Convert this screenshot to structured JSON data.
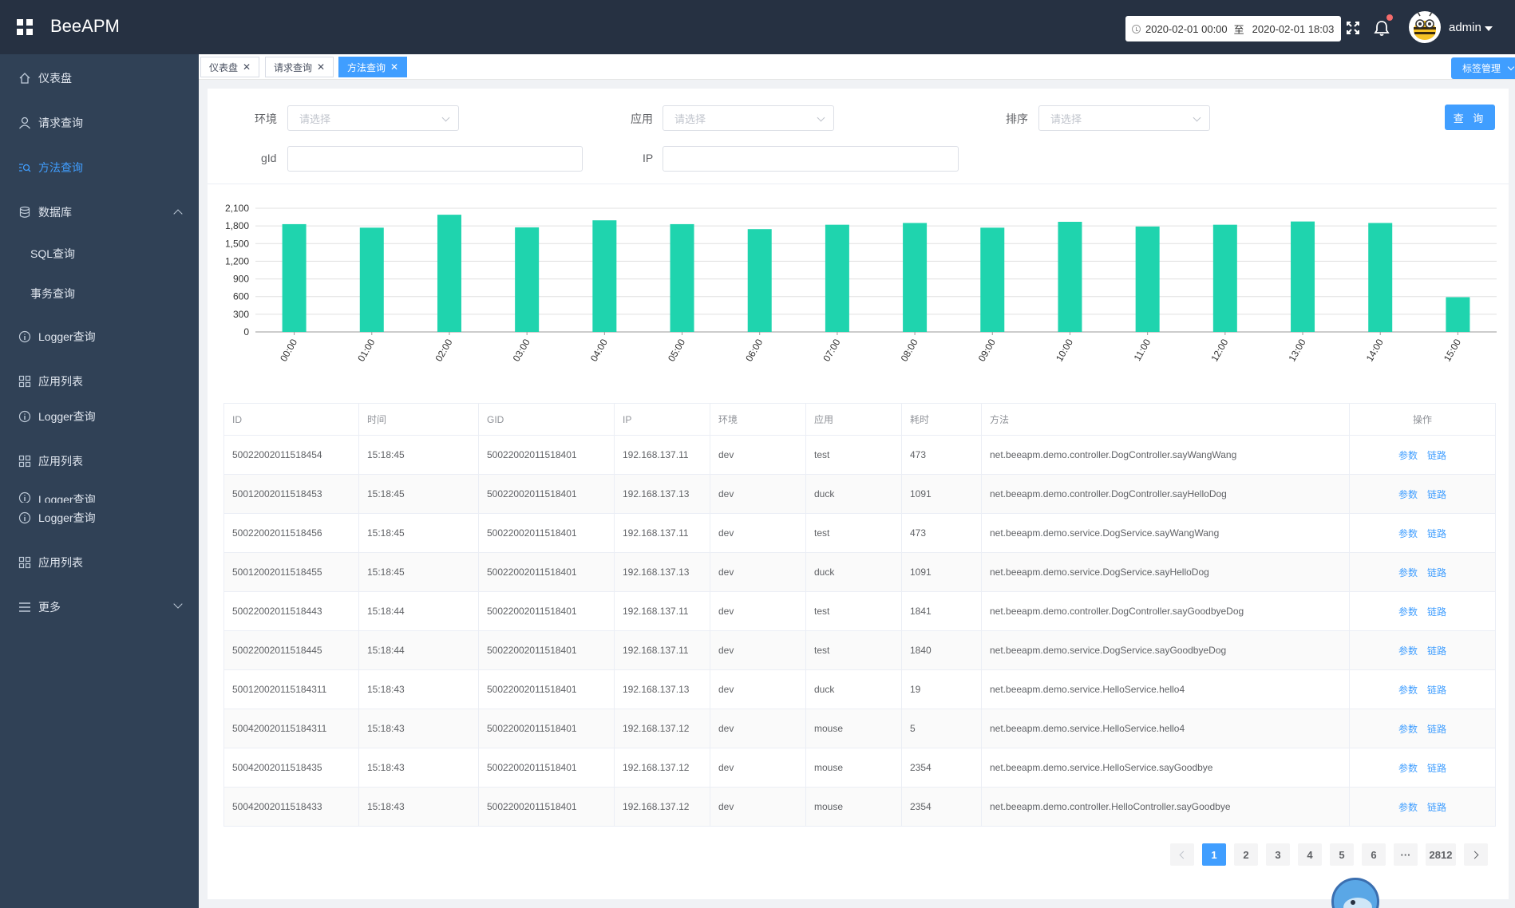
{
  "header": {
    "brand": "BeeAPM",
    "time_start": "2020-02-01 00:00",
    "time_sep": "至",
    "time_end": "2020-02-01 18:03",
    "user": "admin"
  },
  "sidebar": {
    "items": [
      {
        "label": "仪表盘",
        "icon": "home-icon"
      },
      {
        "label": "请求查询",
        "icon": "user-icon"
      },
      {
        "label": "方法查询",
        "icon": "search-list-icon",
        "active": true
      },
      {
        "label": "数据库",
        "icon": "database-icon"
      },
      {
        "label": "SQL查询"
      },
      {
        "label": "事务查询"
      },
      {
        "label": "Logger查询",
        "icon": "info-icon"
      },
      {
        "label": "应用列表",
        "icon": "grid-icon"
      },
      {
        "label": "Logger查询",
        "icon": "info-icon"
      },
      {
        "label": "应用列表",
        "icon": "grid-icon"
      },
      {
        "label": "Logger查询",
        "icon": "info-icon"
      },
      {
        "label": "Logger查询",
        "icon": "info-icon"
      },
      {
        "label": "应用列表",
        "icon": "grid-icon"
      },
      {
        "label": "更多",
        "icon": "menu-icon"
      }
    ]
  },
  "tabs": [
    {
      "label": "仪表盘"
    },
    {
      "label": "请求查询"
    },
    {
      "label": "方法查询",
      "active": true
    }
  ],
  "tag_manage_label": "标签管理",
  "filters": {
    "env_label": "环境",
    "app_label": "应用",
    "sort_label": "排序",
    "gid_label": "gId",
    "ip_label": "IP",
    "select_placeholder": "请选择",
    "query_button": "查 询"
  },
  "chart_data": {
    "type": "bar",
    "categories": [
      "00:00",
      "01:00",
      "02:00",
      "03:00",
      "04:00",
      "05:00",
      "06:00",
      "07:00",
      "08:00",
      "09:00",
      "10:00",
      "11:00",
      "12:00",
      "13:00",
      "14:00",
      "15:00"
    ],
    "values": [
      1830,
      1770,
      1990,
      1775,
      1895,
      1830,
      1745,
      1820,
      1850,
      1770,
      1870,
      1790,
      1820,
      1875,
      1850,
      590
    ],
    "yticks": [
      "2,100",
      "1,800",
      "1,500",
      "1,200",
      "900",
      "600",
      "300",
      "0"
    ],
    "ylim": [
      0,
      2100
    ],
    "color": "#1fd4ae",
    "grid": true
  },
  "table": {
    "columns": [
      "ID",
      "时间",
      "GID",
      "IP",
      "环境",
      "应用",
      "耗时",
      "方法",
      "操作"
    ],
    "rows": [
      [
        "50022002011518454",
        "15:18:45",
        "50022002011518401",
        "192.168.137.11",
        "dev",
        "test",
        "473",
        "net.beeapm.demo.controller.DogController.sayWangWang"
      ],
      [
        "50012002011518453",
        "15:18:45",
        "50022002011518401",
        "192.168.137.13",
        "dev",
        "duck",
        "1091",
        "net.beeapm.demo.controller.DogController.sayHelloDog"
      ],
      [
        "50022002011518456",
        "15:18:45",
        "50022002011518401",
        "192.168.137.11",
        "dev",
        "test",
        "473",
        "net.beeapm.demo.service.DogService.sayWangWang"
      ],
      [
        "50012002011518455",
        "15:18:45",
        "50022002011518401",
        "192.168.137.13",
        "dev",
        "duck",
        "1091",
        "net.beeapm.demo.service.DogService.sayHelloDog"
      ],
      [
        "50022002011518443",
        "15:18:44",
        "50022002011518401",
        "192.168.137.11",
        "dev",
        "test",
        "1841",
        "net.beeapm.demo.controller.DogController.sayGoodbyeDog"
      ],
      [
        "50022002011518445",
        "15:18:44",
        "50022002011518401",
        "192.168.137.11",
        "dev",
        "test",
        "1840",
        "net.beeapm.demo.service.DogService.sayGoodbyeDog"
      ],
      [
        "500120020115184311",
        "15:18:43",
        "50022002011518401",
        "192.168.137.13",
        "dev",
        "duck",
        "19",
        "net.beeapm.demo.service.HelloService.hello4"
      ],
      [
        "500420020115184311",
        "15:18:43",
        "50022002011518401",
        "192.168.137.12",
        "dev",
        "mouse",
        "5",
        "net.beeapm.demo.service.HelloService.hello4"
      ],
      [
        "50042002011518435",
        "15:18:43",
        "50022002011518401",
        "192.168.137.12",
        "dev",
        "mouse",
        "2354",
        "net.beeapm.demo.service.HelloService.sayGoodbye"
      ],
      [
        "50042002011518433",
        "15:18:43",
        "50022002011518401",
        "192.168.137.12",
        "dev",
        "mouse",
        "2354",
        "net.beeapm.demo.controller.HelloController.sayGoodbye"
      ]
    ],
    "op_params": "参数",
    "op_trace": "链路"
  },
  "pagination": {
    "pages": [
      "1",
      "2",
      "3",
      "4",
      "5",
      "6"
    ],
    "current": "1",
    "ellipsis": "···",
    "last": "2812"
  },
  "colors": {
    "header_bg": "#263142",
    "sidebar_bg": "#304156",
    "accent": "#409eff",
    "bar": "#1fd4ae"
  }
}
